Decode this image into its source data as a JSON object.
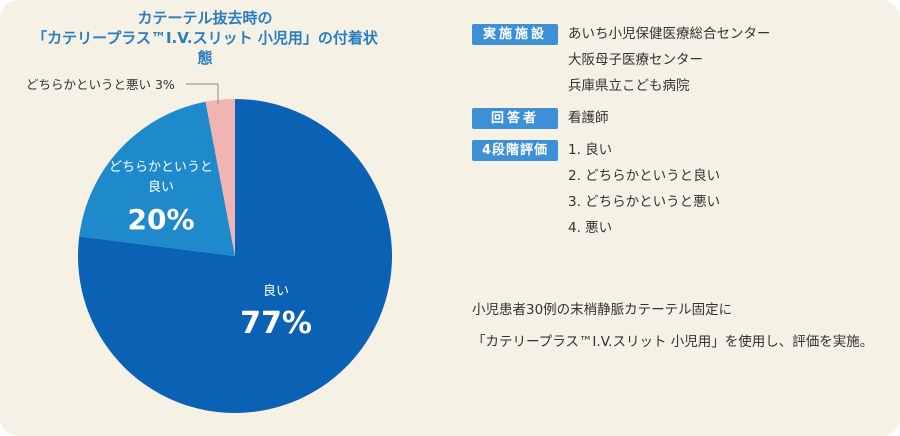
{
  "title_lines": [
    "カテーテル抜去時の",
    "「カテリープラス™I.V.スリット 小児用」の付着状態"
  ],
  "chart_data": {
    "type": "pie",
    "slices": [
      {
        "label": "良い",
        "value": 77,
        "pct_text": "77%",
        "color": "#0b62b4"
      },
      {
        "label_lines": [
          "どちらかというと",
          "良い"
        ],
        "value": 20,
        "pct_text": "20%",
        "color": "#1f8acb"
      },
      {
        "label": "どちらかというと悪い 3%",
        "value": 3,
        "color": "#f2b4b0"
      }
    ]
  },
  "info": {
    "facility_label": "実施施設",
    "facilities": [
      "あいち小児保健医療総合センター",
      "大阪母子医療センター",
      "兵庫県立こども病院"
    ],
    "respondent_label": "回答者",
    "respondent": "看護師",
    "scale_label": "4段階評価",
    "scale": [
      "1. 良い",
      "2. どちらかというと良い",
      "3. どちらかというと悪い",
      "4. 悪い"
    ]
  },
  "note_lines": [
    "小児患者30例の末梢静脈カテーテル固定に",
    "「カテリープラス™I.V.スリット 小児用」を使用し、評価を実施。"
  ],
  "colors": {
    "background": "#f5f1e4",
    "title": "#2a7dc0",
    "badge": "#3d8fd6",
    "good": "#0b62b4",
    "fairly_good": "#1f8acb",
    "fairly_bad": "#f2b4b0"
  }
}
